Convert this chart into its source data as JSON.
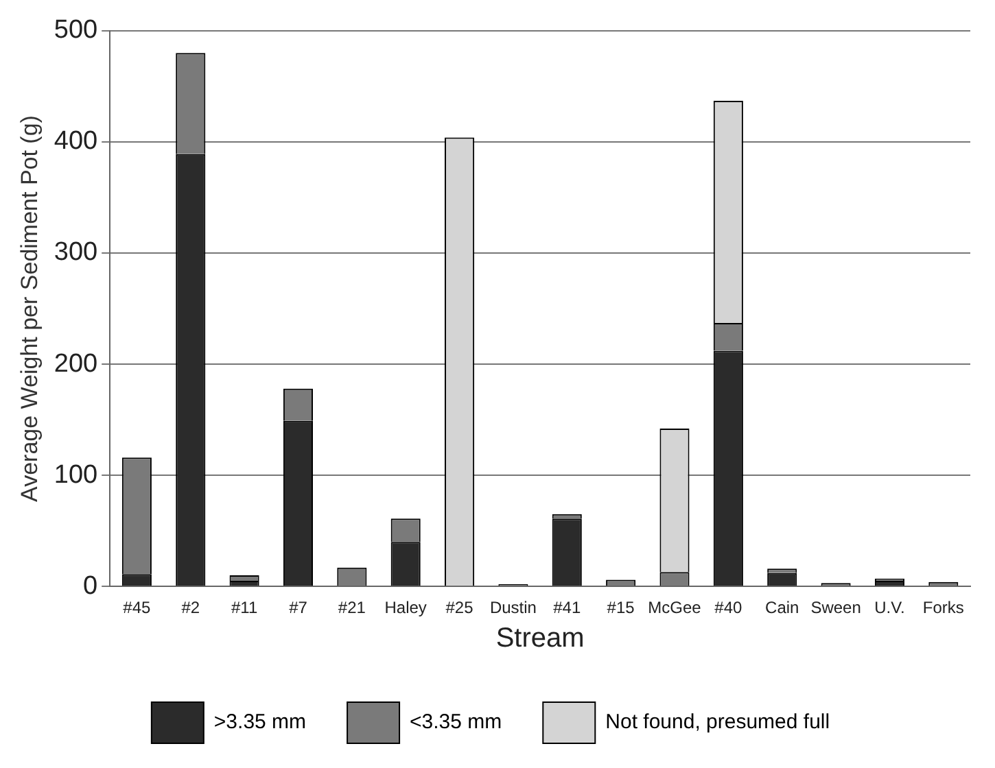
{
  "chart_data": {
    "type": "bar",
    "stacked": true,
    "xlabel": "Stream",
    "ylabel": "Average Weight per Sediment Pot (g)",
    "categories": [
      "#45",
      "#2",
      "#11",
      "#7",
      "#21",
      "Haley",
      "#25",
      "Dustin",
      "#41",
      "#15",
      "McGee",
      "#40",
      "Cain",
      "Sween",
      "U.V.",
      "Forks"
    ],
    "series": [
      {
        "name": ">3.35 mm",
        "color": "#2b2b2b",
        "values": [
          11,
          389,
          5,
          149,
          0,
          40,
          0,
          0,
          61,
          0,
          0,
          212,
          12,
          0,
          5,
          0
        ]
      },
      {
        "name": "<3.35 mm",
        "color": "#7a7a7a",
        "values": [
          105,
          91,
          5,
          29,
          17,
          21,
          0,
          2,
          4,
          6,
          13,
          25,
          4,
          3,
          2,
          4
        ]
      },
      {
        "name": "Not found, presumed full",
        "color": "#d4d4d4",
        "values": [
          0,
          0,
          0,
          0,
          0,
          0,
          404,
          0,
          0,
          0,
          129,
          200,
          0,
          0,
          0,
          0
        ]
      }
    ],
    "ylim": [
      0,
      500
    ],
    "yticks": [
      0,
      100,
      200,
      300,
      400,
      500
    ],
    "grid": "y",
    "legend": "bottom"
  }
}
